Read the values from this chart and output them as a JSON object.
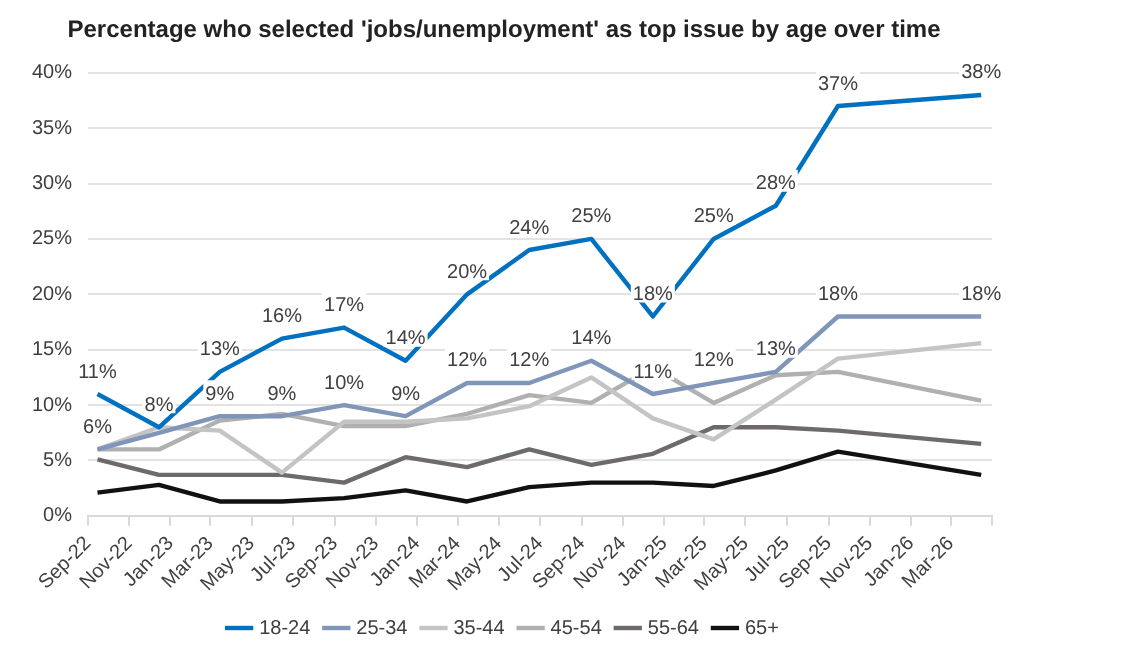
{
  "chart_data": {
    "type": "line",
    "title": "Percentage who selected 'jobs/unemployment' as top issue by age over time",
    "x": [
      "2022-09-15",
      "2022-12-15",
      "2023-03-15",
      "2023-06-15",
      "2023-09-15",
      "2023-12-15",
      "2024-03-15",
      "2024-06-15",
      "2024-09-15",
      "2024-12-15",
      "2025-03-15",
      "2025-06-15",
      "2025-09-15",
      "2026-04-15"
    ],
    "series": [
      {
        "name": "18-24",
        "color": "#0070c0",
        "values": [
          11,
          8,
          13,
          16,
          17,
          14,
          20,
          24,
          25,
          18,
          25,
          28,
          37,
          38
        ],
        "value_labels": [
          "11%",
          "8%",
          "13%",
          "16%",
          "17%",
          "14%",
          "20%",
          "24%",
          "25%",
          "18%",
          "25%",
          "28%",
          "37%",
          "38%"
        ]
      },
      {
        "name": "25-34",
        "color": "#7f96b8",
        "values": [
          6,
          7.5,
          9,
          9,
          10,
          9,
          12,
          12,
          14,
          11,
          12,
          13,
          18,
          18
        ],
        "value_labels": [
          "6%",
          null,
          "9%",
          "9%",
          "10%",
          "9%",
          "12%",
          "12%",
          "14%",
          "11%",
          "12%",
          "13%",
          "18%",
          "18%"
        ]
      },
      {
        "name": "35-44",
        "color": "#c4c4c4",
        "values": [
          6,
          8,
          7.7,
          3.9,
          8.5,
          8.5,
          8.8,
          9.9,
          12.5,
          8.8,
          6.9,
          10.5,
          14.2,
          15.6
        ]
      },
      {
        "name": "45-54",
        "color": "#b0b0b0",
        "values": [
          6,
          6,
          8.6,
          9.2,
          8.1,
          8.1,
          9.2,
          10.9,
          10.2,
          13.4,
          10.2,
          12.7,
          13,
          10.4
        ]
      },
      {
        "name": "55-64",
        "color": "#6e6a6a",
        "values": [
          5.1,
          3.7,
          3.7,
          3.7,
          3,
          5.3,
          4.4,
          6,
          4.6,
          5.6,
          8,
          8,
          7.7,
          6.5
        ]
      },
      {
        "name": "65+",
        "color": "#111111",
        "values": [
          2.1,
          2.8,
          1.3,
          1.3,
          1.6,
          2.3,
          1.3,
          2.6,
          3,
          3,
          2.7,
          4.1,
          5.8,
          3.7
        ]
      }
    ],
    "xlim": [
      "2022-09-01",
      "2026-05-01"
    ],
    "xticks": [
      {
        "value": "2022-09-01",
        "label": "Sep-22"
      },
      {
        "value": "2022-11-01",
        "label": "Nov-22"
      },
      {
        "value": "2023-01-01",
        "label": "Jan-23"
      },
      {
        "value": "2023-03-01",
        "label": "Mar-23"
      },
      {
        "value": "2023-05-01",
        "label": "May-23"
      },
      {
        "value": "2023-07-01",
        "label": "Jul-23"
      },
      {
        "value": "2023-09-01",
        "label": "Sep-23"
      },
      {
        "value": "2023-11-01",
        "label": "Nov-23"
      },
      {
        "value": "2024-01-01",
        "label": "Jan-24"
      },
      {
        "value": "2024-03-01",
        "label": "Mar-24"
      },
      {
        "value": "2024-05-01",
        "label": "May-24"
      },
      {
        "value": "2024-07-01",
        "label": "Jul-24"
      },
      {
        "value": "2024-09-01",
        "label": "Sep-24"
      },
      {
        "value": "2024-11-01",
        "label": "Nov-24"
      },
      {
        "value": "2025-01-01",
        "label": "Jan-25"
      },
      {
        "value": "2025-03-01",
        "label": "Mar-25"
      },
      {
        "value": "2025-05-01",
        "label": "May-25"
      },
      {
        "value": "2025-07-01",
        "label": "Jul-25"
      },
      {
        "value": "2025-09-01",
        "label": "Sep-25"
      },
      {
        "value": "2025-11-01",
        "label": "Nov-25"
      },
      {
        "value": "2026-01-01",
        "label": "Jan-26"
      },
      {
        "value": "2026-03-01",
        "label": "Mar-26"
      },
      {
        "value": "2026-05-01",
        "label": null
      }
    ],
    "ylim": [
      0,
      40
    ],
    "yticks": [
      {
        "value": 0,
        "label": "0%"
      },
      {
        "value": 5,
        "label": "5%"
      },
      {
        "value": 10,
        "label": "10%"
      },
      {
        "value": 15,
        "label": "15%"
      },
      {
        "value": 20,
        "label": "20%"
      },
      {
        "value": 25,
        "label": "25%"
      },
      {
        "value": 30,
        "label": "30%"
      },
      {
        "value": 35,
        "label": "35%"
      },
      {
        "value": 40,
        "label": "40%"
      }
    ],
    "grid": "y",
    "legend": "bottom",
    "marker": "none",
    "line_style": "solid"
  }
}
